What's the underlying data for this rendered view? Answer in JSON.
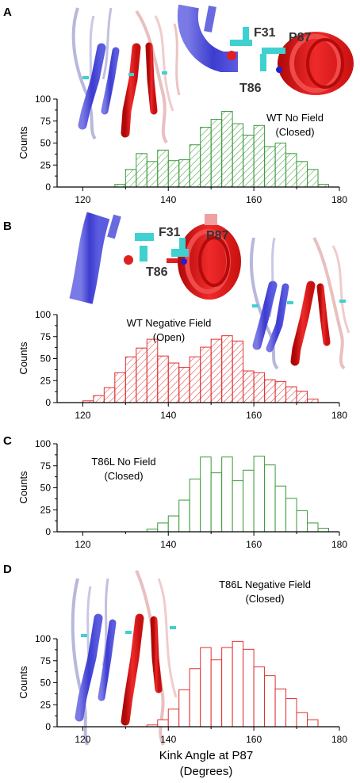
{
  "figure": {
    "xlabel_line1": "Kink Angle at P87",
    "xlabel_line2": "(Degrees)"
  },
  "colors": {
    "green": "#3a9a3a",
    "red": "#e03030",
    "blue_helix": "#4646d8",
    "red_helix": "#e01818",
    "cyan_residue": "#40d0d0"
  },
  "structure_labels": {
    "a": [
      "F31",
      "P87",
      "T86"
    ],
    "b": [
      "F31",
      "P87",
      "T86"
    ]
  },
  "chart_data": [
    {
      "panel": "A",
      "type": "bar",
      "style": "hatched",
      "color": "green",
      "annotation": [
        "WT No Field",
        "(Closed)"
      ],
      "ylabel": "Counts",
      "ylim": [
        0,
        100
      ],
      "yticks": [
        0,
        25,
        50,
        75,
        100
      ],
      "xlim": [
        114,
        180
      ],
      "xticks": [
        120,
        140,
        160,
        180
      ],
      "bin_width": 2.5,
      "bin_starts": [
        127.5,
        130,
        132.5,
        135,
        137.5,
        140,
        142.5,
        145,
        147.5,
        150,
        152.5,
        155,
        157.5,
        160,
        162.5,
        165,
        167.5,
        170,
        172.5,
        175
      ],
      "values": [
        3,
        20,
        38,
        29,
        42,
        30,
        31,
        48,
        68,
        77,
        86,
        72,
        59,
        70,
        46,
        50,
        38,
        29,
        20,
        3
      ]
    },
    {
      "panel": "B",
      "type": "bar",
      "style": "hatched",
      "color": "red",
      "annotation": [
        "WT Negative Field",
        "(Open)"
      ],
      "ylabel": "Counts",
      "ylim": [
        0,
        100
      ],
      "yticks": [
        0,
        25,
        50,
        75,
        100
      ],
      "xlim": [
        114,
        180
      ],
      "xticks": [
        120,
        140,
        160,
        180
      ],
      "bin_width": 2.5,
      "bin_starts": [
        120,
        122.5,
        125,
        127.5,
        130,
        132.5,
        135,
        137.5,
        140,
        142.5,
        145,
        147.5,
        150,
        152.5,
        155,
        157.5,
        160,
        162.5,
        165,
        167.5,
        170,
        172.5
      ],
      "values": [
        2,
        8,
        17,
        34,
        52,
        62,
        72,
        53,
        45,
        40,
        52,
        63,
        72,
        76,
        70,
        36,
        34,
        26,
        24,
        18,
        13,
        4
      ]
    },
    {
      "panel": "C",
      "type": "bar",
      "style": "outline",
      "color": "green",
      "annotation": [
        "T86L No Field",
        "(Closed)"
      ],
      "ylabel": "Counts",
      "ylim": [
        0,
        100
      ],
      "yticks": [
        0,
        25,
        50,
        75,
        100
      ],
      "xlim": [
        114,
        180
      ],
      "xticks": [
        120,
        140,
        160,
        180
      ],
      "bin_width": 2.5,
      "bin_starts": [
        135,
        137.5,
        140,
        142.5,
        145,
        147.5,
        150,
        152.5,
        155,
        157.5,
        160,
        162.5,
        165,
        167.5,
        170,
        172.5,
        175
      ],
      "values": [
        3,
        10,
        18,
        36,
        60,
        85,
        67,
        85,
        58,
        70,
        86,
        76,
        52,
        38,
        24,
        10,
        4
      ]
    },
    {
      "panel": "D",
      "type": "bar",
      "style": "outline",
      "color": "red",
      "annotation": [
        "T86L Negative Field",
        "(Closed)"
      ],
      "ylabel": "Counts",
      "ylim": [
        0,
        100
      ],
      "yticks": [
        0,
        25,
        50,
        75,
        100
      ],
      "xlim": [
        114,
        180
      ],
      "xticks": [
        120,
        140,
        160,
        180
      ],
      "bin_width": 2.5,
      "bin_starts": [
        135,
        137.5,
        140,
        142.5,
        145,
        147.5,
        150,
        152.5,
        155,
        157.5,
        160,
        162.5,
        165,
        167.5,
        170,
        172.5
      ],
      "values": [
        2,
        8,
        20,
        42,
        66,
        90,
        76,
        90,
        97,
        88,
        68,
        58,
        43,
        32,
        16,
        8
      ]
    }
  ]
}
